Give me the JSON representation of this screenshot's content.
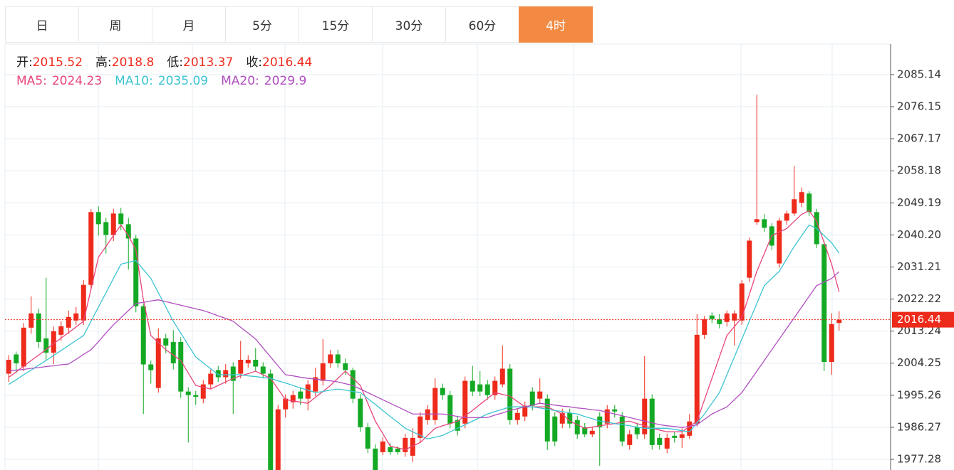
{
  "tabs": [
    "日",
    "周",
    "月",
    "5分",
    "15分",
    "30分",
    "60分",
    "4时"
  ],
  "active_tab": "4时",
  "chart_data": {
    "type": "candlestick",
    "info_labels": {
      "open": "开:",
      "high": "高:",
      "low": "低:",
      "close": "收:"
    },
    "up_color": "#ee2a1b",
    "down_color": "#14a924",
    "open": [
      2001.3,
      2006.7,
      2003.3,
      2014.2,
      2018.2,
      2011.2,
      2007.2,
      2012.2,
      2014.2,
      2016.2,
      2016.2,
      2026.2,
      2046.6,
      2043.8,
      2040.2,
      2046.2,
      2043.2,
      2039.2,
      2020.2,
      2003.9,
      1997.3,
      2011.2,
      2010.2,
      2010.2,
      1996.3,
      1995.3,
      1994.3,
      1998.3,
      2002.3,
      2000.3,
      2003.3,
      2001.3,
      2004.2,
      2005.2,
      2003.3,
      2001.3,
      1974.3,
      1991.3,
      1993.3,
      1996.3,
      1994.3,
      1996.3,
      1999.3,
      2004.2,
      2006.7,
      2004.2,
      2002.3,
      1994.3,
      1986.3,
      1980.3,
      1979.3,
      1980.7,
      1980.3,
      1979.3,
      1978.3,
      1983.3,
      1988.3,
      1988.3,
      1997.3,
      1995.3,
      1988.3,
      1987.3,
      1999.3,
      1998.3,
      1998.3,
      1995.3,
      1998.3,
      2002.7,
      1988.3,
      1989.3,
      1996.3,
      1994.3,
      1994.3,
      1989.3,
      1987.3,
      1990.3,
      1988.3,
      1986.3,
      1984.3,
      1989.3,
      1987.3,
      1991.3,
      1989.3,
      1981.3,
      1986.3,
      1984.3,
      1994.3,
      1983.3,
      1980.3,
      1983.9,
      1983.3,
      1983.9,
      1987.3,
      2012.2,
      2017.6,
      2016.6,
      2015.8,
      2016.2,
      2016.2,
      2028.2,
      2043.8,
      2044.6,
      2042.6,
      2032.2,
      2044.2,
      2046.2,
      2049.2,
      2051.8,
      2046.6,
      2037.6,
      2004.6,
      2015.52
    ],
    "high": [
      2006.5,
      2007.5,
      2015.5,
      2023.0,
      2019.5,
      2028.2,
      2014.5,
      2016.0,
      2019.0,
      2020.0,
      2027.5,
      2047.4,
      2048.2,
      2045.0,
      2047.5,
      2047.8,
      2045.0,
      2040.2,
      2021.0,
      2005.0,
      2014.0,
      2012.5,
      2013.5,
      2011.5,
      1997.5,
      1996.5,
      1999.5,
      2002.5,
      2003.5,
      2004.0,
      2004.5,
      2010.5,
      2006.5,
      2008.5,
      2004.5,
      2002.5,
      1992.5,
      1995.5,
      1996.5,
      1997.5,
      1999.5,
      2003.0,
      2011.0,
      2008.0,
      2008.0,
      2005.5,
      2003.0,
      1995.5,
      1987.5,
      1981.5,
      1983.5,
      1981.8,
      1981.0,
      1984.5,
      1986.0,
      1990.5,
      1992.5,
      2000.0,
      1998.5,
      1996.5,
      1989.5,
      2000.5,
      2003.5,
      2002.0,
      1999.5,
      2000.5,
      2009.2,
      2004.0,
      1991.5,
      1993.5,
      1997.5,
      2000.0,
      1995.5,
      1990.5,
      1991.5,
      1991.5,
      1989.5,
      1987.5,
      1986.5,
      1990.5,
      1992.5,
      1992.5,
      1990.5,
      1985.5,
      1987.5,
      2006.2,
      1995.5,
      1984.5,
      1984.5,
      1985.0,
      1986.0,
      1990.0,
      2018.0,
      2017.5,
      2018.5,
      2018.0,
      2019.0,
      2019.0,
      2027.5,
      2039.5,
      2079.5,
      2046.0,
      2043.5,
      2045.0,
      2047.0,
      2059.5,
      2053.5,
      2052.5,
      2047.5,
      2038.5,
      2018.2,
      2018.8
    ],
    "low": [
      1999.0,
      2001.5,
      2002.0,
      2012.5,
      2008.5,
      2005.0,
      2004.0,
      2010.5,
      2012.5,
      2015.0,
      2015.0,
      2025.0,
      2040.0,
      2035.0,
      2038.5,
      2041.5,
      2030.5,
      2018.5,
      1990.0,
      1998.5,
      1996.0,
      2007.0,
      2002.5,
      1994.5,
      1982.0,
      1992.5,
      1993.0,
      1997.0,
      1999.0,
      1998.5,
      1990.0,
      2000.0,
      2003.0,
      2002.0,
      2000.0,
      1972.0,
      1973.0,
      1989.0,
      1991.5,
      1992.5,
      1991.0,
      1995.0,
      1998.0,
      2003.0,
      2003.0,
      2001.0,
      1993.0,
      1985.0,
      1979.0,
      1973.5,
      1978.5,
      1978.5,
      1978.6,
      1978.0,
      1976.5,
      1982.0,
      1987.0,
      1987.0,
      1994.0,
      1986.0,
      1984.0,
      1986.0,
      1995.0,
      1995.0,
      1994.0,
      1994.0,
      1997.5,
      1987.0,
      1987.0,
      1988.0,
      1991.0,
      1993.0,
      1979.9,
      1981.0,
      1986.0,
      1986.0,
      1983.0,
      1983.5,
      1983.5,
      1975.5,
      1986.0,
      1989.0,
      1981.0,
      1980.0,
      1983.0,
      1983.0,
      1980.0,
      1980.0,
      1979.0,
      1982.0,
      1980.5,
      1983.0,
      1986.5,
      2011.0,
      2015.5,
      2014.0,
      2014.5,
      2009.2,
      2015.0,
      2027.0,
      2043.0,
      2041.0,
      2036.0,
      2031.0,
      2043.0,
      2045.5,
      2048.0,
      2045.5,
      2036.5,
      2002.0,
      2001.0,
      2013.37
    ],
    "close": [
      2005.2,
      2004.2,
      2014.2,
      2018.2,
      2010.2,
      2007.2,
      2013.2,
      2014.6,
      2017.2,
      2018.2,
      2026.2,
      2046.6,
      2043.2,
      2040.2,
      2046.2,
      2043.2,
      2039.2,
      2020.2,
      2003.9,
      2002.3,
      2011.2,
      2009.2,
      2004.2,
      1996.3,
      1995.3,
      1994.8,
      1998.3,
      2001.3,
      2000.3,
      2002.3,
      1999.3,
      2005.2,
      2005.2,
      2003.3,
      2001.3,
      1974.3,
      1991.3,
      1994.3,
      1995.3,
      1994.3,
      1998.3,
      2000.3,
      2004.2,
      2006.7,
      2004.2,
      2002.3,
      1994.3,
      1986.3,
      1980.3,
      1974.3,
      1982.3,
      1979.3,
      1979.3,
      1983.3,
      1983.3,
      1989.3,
      1991.3,
      1997.3,
      1995.3,
      1987.3,
      1985.3,
      1999.3,
      1996.3,
      1996.3,
      1995.3,
      1999.3,
      2002.7,
      1988.3,
      1990.3,
      1992.3,
      1992.3,
      1996.3,
      1982.3,
      1982.3,
      1990.3,
      1987.3,
      1984.3,
      1984.3,
      1985.3,
      1986.3,
      1991.3,
      1990.7,
      1982.3,
      1984.3,
      1984.3,
      1994.3,
      1981.3,
      1981.3,
      1983.3,
      1983.3,
      1984.3,
      1987.9,
      2012.2,
      2016.6,
      2016.6,
      2015.2,
      2018.2,
      2018.2,
      2026.6,
      2038.6,
      2044.6,
      2042.2,
      2037.2,
      2044.2,
      2046.2,
      2050.2,
      2052.2,
      2046.6,
      2037.6,
      2004.6,
      2015.2,
      2016.44
    ],
    "series": [
      {
        "name": "MA5:",
        "color": "#e8457c",
        "values": [
          2000.3,
          2001.8,
          2003.4,
          2005.0,
          2006.5,
          2008.1,
          2009.7,
          2011.3,
          2012.8,
          2014.4,
          2016.0,
          2025,
          2034,
          2037,
          2040,
          2043,
          2040,
          2036,
          2022,
          2012,
          2010,
          2008,
          2006.5,
          2005,
          2001.5,
          1998,
          1997.5,
          1997,
          1998,
          1999,
          2000,
          2000.7,
          2001.3,
          2002,
          2001,
          2000,
          1997,
          1994,
          1993.7,
          1993.3,
          1993,
          1994.7,
          1996.3,
          1998,
          2000,
          2002,
          2000,
          1998,
          1993,
          1988,
          1984.5,
          1981,
          1980.5,
          1980,
          1981,
          1982,
          1984,
          1986,
          1986.7,
          1987.3,
          1988,
          1989.5,
          1991,
          1992.7,
          1994.3,
          1996,
          1995.5,
          1995,
          1993.5,
          1992,
          1992,
          1992,
          1992,
          1991,
          1990,
          1988,
          1987,
          1986,
          1986.3,
          1986.7,
          1987,
          1987.3,
          1987.7,
          1988,
          1987.3,
          1986.7,
          1986,
          1985.5,
          1985,
          1985,
          1985,
          1986.5,
          1988,
          1994,
          2000,
          2006,
          2012,
          2014.5,
          2017,
          2023.5,
          2030,
          2035,
          2040,
          2041,
          2042,
          2044,
          2046,
          2047,
          2044,
          2038,
          2032,
          2024.23
        ]
      },
      {
        "name": "MA10:",
        "color": "#3cc4d2",
        "values": [
          1998.3,
          1999.6,
          2001.0,
          2002.3,
          2003.7,
          2005.0,
          2006.4,
          2007.8,
          2009.2,
          2010.6,
          2012.0,
          2016,
          2020,
          2024,
          2028,
          2032,
          2032.5,
          2033,
          2030.5,
          2028,
          2024,
          2020,
          2016,
          2012.7,
          2009.3,
          2006,
          2004.3,
          2002.7,
          2001,
          2001,
          2001,
          2001,
          2000.7,
          2000.5,
          2000.2,
          2000,
          1999.3,
          1998.7,
          1998,
          1997.3,
          1996.7,
          1996,
          1996.3,
          1996.7,
          1997,
          1996.7,
          1996.3,
          1996,
          1994.3,
          1992.7,
          1991,
          1989.3,
          1987.7,
          1986,
          1985,
          1984,
          1983,
          1983.5,
          1984,
          1985,
          1986,
          1987,
          1988,
          1989,
          1990,
          1990.7,
          1991.3,
          1992,
          1992,
          1992,
          1992,
          1991.7,
          1991.3,
          1991,
          1990.7,
          1990.3,
          1990,
          1989.3,
          1988.7,
          1988,
          1987.7,
          1987.3,
          1987,
          1986.7,
          1986.3,
          1986,
          1986,
          1986,
          1986,
          1985.7,
          1985.3,
          1985,
          1987.5,
          1990,
          1993,
          1996,
          2001,
          2006,
          2011,
          2016,
          2021,
          2026,
          2028,
          2030,
          2033.5,
          2037,
          2040,
          2043,
          2042,
          2040,
          2038,
          2035.09
        ]
      },
      {
        "name": "MA20:",
        "color": "#b04ec0",
        "values": [
          2002,
          2002.3,
          2002.5,
          2002.8,
          2003,
          2003.3,
          2003.5,
          2003.8,
          2004,
          2005.3,
          2006.7,
          2008,
          2010.3,
          2012.7,
          2015,
          2017,
          2019,
          2021,
          2021.3,
          2021.7,
          2022,
          2021.5,
          2021,
          2020.5,
          2020,
          2019.5,
          2019,
          2018.3,
          2017.5,
          2016.8,
          2016,
          2014.3,
          2012.7,
          2011,
          2008.5,
          2006,
          2003.5,
          2001,
          2000.7,
          2000.3,
          2000,
          1999.8,
          1999.5,
          1999.3,
          1999,
          1998.5,
          1998,
          1997,
          1996,
          1995,
          1994,
          1993,
          1992,
          1991,
          1990,
          1990,
          1990,
          1990,
          1990,
          1989.7,
          1989.3,
          1989,
          1989,
          1989,
          1989,
          1989.7,
          1990.3,
          1991,
          1991.5,
          1992,
          1992.5,
          1993,
          1992.7,
          1992.5,
          1992.2,
          1992,
          1991.7,
          1991.5,
          1991.2,
          1991,
          1990.5,
          1990,
          1989.5,
          1989,
          1988.5,
          1988,
          1987.5,
          1987,
          1986.7,
          1986.5,
          1986.2,
          1986.5,
          1987,
          1988.5,
          1990,
          1991,
          1992,
          1994,
          1996,
          1999,
          2002,
          2005,
          2008,
          2011,
          2014,
          2017,
          2020,
          2023,
          2026,
          2027,
          2028,
          2029.9
        ]
      }
    ],
    "ylim": [
      1974.3,
      2093.7
    ],
    "yticks": [
      2085.14,
      2076.15,
      2067.17,
      2058.18,
      2049.19,
      {
        "value": 2040.2,
        "label": "2040.20"
      },
      2031.21,
      2022.22,
      2013.24,
      2004.25,
      1995.26,
      1986.27,
      1977.28
    ],
    "grid": true,
    "last_price_line": true
  }
}
